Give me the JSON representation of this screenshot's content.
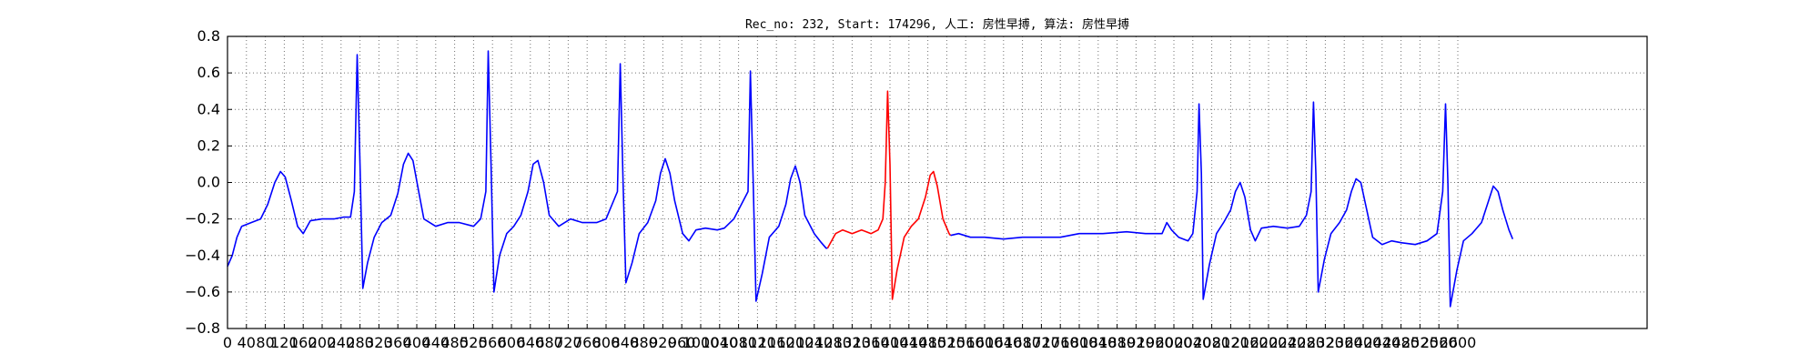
{
  "chart_data": {
    "type": "line",
    "title": "Rec_no: 232, Start: 174296, 人工: 房性早搏, 算法: 房性早搏",
    "xlabel": "",
    "ylabel": "",
    "xlim": [
      0,
      3000
    ],
    "ylim": [
      -0.8,
      0.8
    ],
    "grid": true,
    "yticks": [
      "0.8",
      "0.6",
      "0.4",
      "0.2",
      "0.0",
      "−0.2",
      "−0.4",
      "−0.6",
      "−0.8"
    ],
    "ytick_values": [
      0.8,
      0.6,
      0.4,
      0.2,
      0.0,
      -0.2,
      -0.4,
      -0.6,
      -0.8
    ],
    "xticks": [
      "0",
      "40",
      "80",
      "120",
      "160",
      "200",
      "240",
      "280",
      "320",
      "360",
      "400",
      "440",
      "480",
      "520",
      "560",
      "600",
      "640",
      "680",
      "720",
      "760",
      "800",
      "840",
      "880",
      "920",
      "960",
      "1000",
      "1040",
      "1080",
      "1120",
      "1160",
      "1200",
      "1240",
      "1280",
      "1320",
      "1360",
      "1400",
      "1440",
      "1480",
      "1520",
      "1560",
      "1600",
      "1640",
      "1680",
      "1720",
      "1760",
      "1800",
      "1840",
      "1880",
      "1920",
      "1960",
      "2000",
      "2040",
      "2080",
      "2120",
      "2160",
      "2200",
      "2240",
      "2280",
      "2320",
      "2360",
      "2400",
      "2440",
      "2480",
      "2520",
      "2560",
      "2600"
    ],
    "xtick_values": [
      0,
      40,
      80,
      120,
      160,
      200,
      240,
      280,
      320,
      360,
      400,
      440,
      480,
      520,
      560,
      600,
      640,
      680,
      720,
      760,
      800,
      840,
      880,
      920,
      960,
      1000,
      1040,
      1080,
      1120,
      1160,
      1200,
      1240,
      1280,
      1320,
      1360,
      1400,
      1440,
      1480,
      1520,
      1560,
      1600,
      1640,
      1680,
      1720,
      1760,
      1800,
      1840,
      1880,
      1920,
      1960,
      2000,
      2040,
      2080,
      2120,
      2160,
      2200,
      2240,
      2280,
      2320,
      2360,
      2400,
      2440,
      2480,
      2520,
      2560,
      2600
    ],
    "series": [
      {
        "color": "#0000ff",
        "points": [
          [
            0,
            -0.46
          ],
          [
            10,
            -0.4
          ],
          [
            20,
            -0.3
          ],
          [
            30,
            -0.24
          ],
          [
            50,
            -0.22
          ],
          [
            70,
            -0.2
          ],
          [
            85,
            -0.12
          ],
          [
            100,
            0.0
          ],
          [
            112,
            0.06
          ],
          [
            122,
            0.03
          ],
          [
            135,
            -0.1
          ],
          [
            148,
            -0.24
          ],
          [
            160,
            -0.28
          ],
          [
            175,
            -0.21
          ],
          [
            200,
            -0.2
          ],
          [
            225,
            -0.2
          ],
          [
            245,
            -0.19
          ],
          [
            260,
            -0.19
          ],
          [
            268,
            -0.05
          ],
          [
            274,
            0.7
          ],
          [
            280,
            0.1
          ],
          [
            286,
            -0.58
          ],
          [
            296,
            -0.44
          ],
          [
            310,
            -0.3
          ],
          [
            326,
            -0.22
          ],
          [
            345,
            -0.18
          ],
          [
            360,
            -0.06
          ],
          [
            372,
            0.1
          ],
          [
            382,
            0.16
          ],
          [
            392,
            0.12
          ],
          [
            404,
            -0.05
          ],
          [
            415,
            -0.2
          ],
          [
            440,
            -0.24
          ],
          [
            465,
            -0.22
          ],
          [
            490,
            -0.22
          ],
          [
            520,
            -0.24
          ],
          [
            535,
            -0.2
          ],
          [
            546,
            -0.05
          ],
          [
            551,
            0.72
          ],
          [
            557,
            0.1
          ],
          [
            563,
            -0.6
          ],
          [
            575,
            -0.4
          ],
          [
            590,
            -0.28
          ],
          [
            605,
            -0.24
          ],
          [
            620,
            -0.18
          ],
          [
            635,
            -0.05
          ],
          [
            646,
            0.1
          ],
          [
            656,
            0.12
          ],
          [
            668,
            0.0
          ],
          [
            680,
            -0.18
          ],
          [
            700,
            -0.24
          ],
          [
            725,
            -0.2
          ],
          [
            750,
            -0.22
          ],
          [
            780,
            -0.22
          ],
          [
            800,
            -0.2
          ],
          [
            824,
            -0.05
          ],
          [
            830,
            0.65
          ],
          [
            836,
            0.0
          ],
          [
            842,
            -0.55
          ],
          [
            855,
            -0.44
          ],
          [
            870,
            -0.28
          ],
          [
            888,
            -0.22
          ],
          [
            905,
            -0.1
          ],
          [
            915,
            0.05
          ],
          [
            925,
            0.13
          ],
          [
            935,
            0.05
          ],
          [
            945,
            -0.1
          ],
          [
            962,
            -0.28
          ],
          [
            975,
            -0.32
          ],
          [
            990,
            -0.26
          ],
          [
            1010,
            -0.25
          ],
          [
            1035,
            -0.26
          ],
          [
            1050,
            -0.25
          ],
          [
            1070,
            -0.2
          ],
          [
            1100,
            -0.05
          ],
          [
            1105,
            0.61
          ],
          [
            1111,
            0.0
          ],
          [
            1117,
            -0.65
          ],
          [
            1130,
            -0.5
          ],
          [
            1145,
            -0.3
          ],
          [
            1165,
            -0.24
          ],
          [
            1180,
            -0.12
          ],
          [
            1190,
            0.02
          ],
          [
            1200,
            0.09
          ],
          [
            1210,
            0.0
          ],
          [
            1220,
            -0.18
          ],
          [
            1240,
            -0.28
          ],
          [
            1255,
            -0.33
          ],
          [
            1265,
            -0.36
          ],
          [
            1268,
            -0.36
          ]
        ]
      },
      {
        "color": "#ff0000",
        "points": [
          [
            1268,
            -0.36
          ],
          [
            1285,
            -0.28
          ],
          [
            1300,
            -0.26
          ],
          [
            1320,
            -0.28
          ],
          [
            1340,
            -0.26
          ],
          [
            1360,
            -0.28
          ],
          [
            1375,
            -0.26
          ],
          [
            1385,
            -0.2
          ],
          [
            1390,
            0.0
          ],
          [
            1395,
            0.5
          ],
          [
            1400,
            0.1
          ],
          [
            1405,
            -0.64
          ],
          [
            1415,
            -0.48
          ],
          [
            1430,
            -0.3
          ],
          [
            1445,
            -0.24
          ],
          [
            1460,
            -0.2
          ],
          [
            1475,
            -0.08
          ],
          [
            1485,
            0.04
          ],
          [
            1492,
            0.06
          ],
          [
            1500,
            -0.02
          ],
          [
            1512,
            -0.2
          ],
          [
            1525,
            -0.28
          ],
          [
            1528,
            -0.29
          ]
        ]
      },
      {
        "color": "#0000ff",
        "points": [
          [
            1528,
            -0.29
          ],
          [
            1545,
            -0.28
          ],
          [
            1570,
            -0.3
          ],
          [
            1600,
            -0.3
          ],
          [
            1640,
            -0.31
          ],
          [
            1680,
            -0.3
          ],
          [
            1720,
            -0.3
          ],
          [
            1760,
            -0.3
          ],
          [
            1800,
            -0.28
          ],
          [
            1850,
            -0.28
          ],
          [
            1900,
            -0.27
          ],
          [
            1940,
            -0.28
          ],
          [
            1975,
            -0.28
          ],
          [
            1985,
            -0.22
          ],
          [
            1995,
            -0.26
          ],
          [
            2010,
            -0.3
          ],
          [
            2030,
            -0.32
          ],
          [
            2040,
            -0.28
          ],
          [
            2049,
            -0.05
          ],
          [
            2053,
            0.43
          ],
          [
            2058,
            0.05
          ],
          [
            2062,
            -0.64
          ],
          [
            2075,
            -0.45
          ],
          [
            2090,
            -0.28
          ],
          [
            2105,
            -0.22
          ],
          [
            2120,
            -0.15
          ],
          [
            2130,
            -0.05
          ],
          [
            2140,
            0.0
          ],
          [
            2150,
            -0.08
          ],
          [
            2162,
            -0.26
          ],
          [
            2172,
            -0.32
          ],
          [
            2185,
            -0.25
          ],
          [
            2210,
            -0.24
          ],
          [
            2240,
            -0.25
          ],
          [
            2265,
            -0.24
          ],
          [
            2280,
            -0.18
          ],
          [
            2290,
            -0.05
          ],
          [
            2295,
            0.44
          ],
          [
            2300,
            0.05
          ],
          [
            2305,
            -0.6
          ],
          [
            2318,
            -0.42
          ],
          [
            2332,
            -0.28
          ],
          [
            2350,
            -0.22
          ],
          [
            2365,
            -0.15
          ],
          [
            2375,
            -0.05
          ],
          [
            2385,
            0.02
          ],
          [
            2395,
            0.0
          ],
          [
            2405,
            -0.12
          ],
          [
            2420,
            -0.3
          ],
          [
            2440,
            -0.34
          ],
          [
            2460,
            -0.32
          ],
          [
            2480,
            -0.33
          ],
          [
            2510,
            -0.34
          ],
          [
            2535,
            -0.32
          ],
          [
            2556,
            -0.28
          ],
          [
            2568,
            -0.05
          ],
          [
            2574,
            0.43
          ],
          [
            2579,
            0.0
          ],
          [
            2584,
            -0.68
          ],
          [
            2598,
            -0.48
          ],
          [
            2612,
            -0.32
          ],
          [
            2630,
            -0.28
          ],
          [
            2650,
            -0.22
          ],
          [
            2665,
            -0.1
          ],
          [
            2675,
            -0.02
          ],
          [
            2685,
            -0.05
          ],
          [
            2695,
            -0.15
          ],
          [
            2708,
            -0.26
          ],
          [
            2716,
            -0.31
          ]
        ]
      }
    ]
  }
}
